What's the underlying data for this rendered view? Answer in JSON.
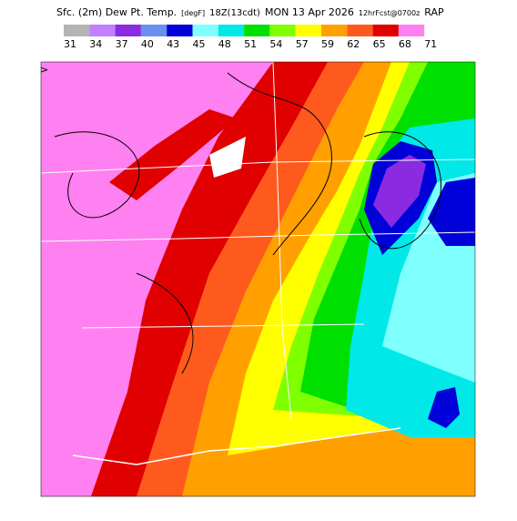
{
  "header": {
    "title_parts": [
      "Sfc. (2m) Dew Pt. Temp.",
      "[degF]",
      "18Z(13cdt)",
      "MON 13 Apr 2026",
      "12hrFcst@0700z",
      "RAP"
    ]
  },
  "legend": {
    "colors": [
      "#b4b4b4",
      "#c080ff",
      "#8a2be2",
      "#6a8ff0",
      "#0000d8",
      "#80ffff",
      "#00e8e8",
      "#00e000",
      "#80ff00",
      "#ffff00",
      "#ffa000",
      "#ff5a1e",
      "#e00000",
      "#ff80f0"
    ],
    "labels": [
      "31",
      "34",
      "37",
      "40",
      "43",
      "45",
      "48",
      "51",
      "54",
      "57",
      "59",
      "62",
      "65",
      "68",
      "71"
    ]
  },
  "map_marker": ">"
}
